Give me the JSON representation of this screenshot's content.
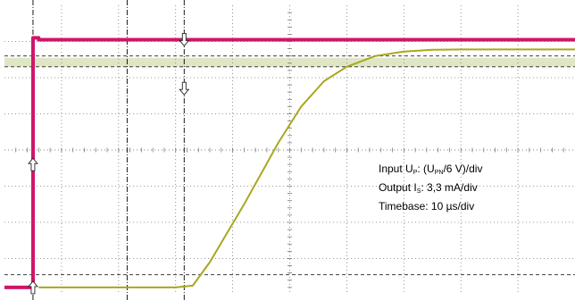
{
  "chart_data": {
    "type": "line",
    "title": "",
    "xlabel": "",
    "ylabel": "",
    "grid": true,
    "legend_placement": "right-middle",
    "x_divisions": 10,
    "y_divisions": 8,
    "xlim": [
      0,
      10
    ],
    "ylim": [
      0,
      8
    ],
    "colors": {
      "input_trace": "#d0156a",
      "output_trace": "#a8a81e",
      "tolerance_band": "#dfe6c6",
      "grid": "#7a7a7a",
      "cursor": "#000000"
    },
    "legend_lines": [
      {
        "label": "Input U",
        "sub": "P",
        "value": ": (U",
        "value_sub": "PN",
        "value_tail": "/6 V)/div"
      },
      {
        "label": "Output I",
        "sub": "S",
        "value": ":  3,3 mA/div",
        "value_sub": "",
        "value_tail": ""
      },
      {
        "label": "Timebase",
        "sub": "",
        "value": ": 10 µs/div",
        "value_sub": "",
        "value_tail": ""
      }
    ],
    "series": [
      {
        "name": "Input U",
        "x": [
          0,
          0.5,
          0.5,
          0.6,
          0.6,
          10
        ],
        "y": [
          0.2,
          0.2,
          7.1,
          7.1,
          7.05,
          7.05
        ]
      },
      {
        "name": "Output I",
        "x": [
          0.6,
          1.0,
          2.0,
          3.0,
          3.3,
          3.6,
          4.2,
          4.8,
          5.2,
          5.6,
          6.0,
          6.5,
          7.0,
          7.5,
          8.0,
          10
        ],
        "y": [
          0.2,
          0.2,
          0.2,
          0.2,
          0.25,
          0.9,
          2.5,
          4.2,
          5.2,
          5.9,
          6.3,
          6.6,
          6.72,
          6.77,
          6.78,
          6.78
        ]
      }
    ],
    "tolerance_band": {
      "y_min": 6.3,
      "y_max": 6.55
    },
    "dashed_levels": [
      6.6,
      6.3,
      0.55
    ],
    "cursors": [
      {
        "x": 0.5,
        "arrows": [
          {
            "y": 3.6,
            "dir": "up"
          },
          {
            "y": 0.2,
            "dir": "up"
          }
        ]
      },
      {
        "x": 2.15,
        "arrows": []
      },
      {
        "x": 3.15,
        "arrows": [
          {
            "y": 7.05,
            "dir": "down"
          },
          {
            "y": 5.7,
            "dir": "down"
          }
        ]
      }
    ]
  }
}
